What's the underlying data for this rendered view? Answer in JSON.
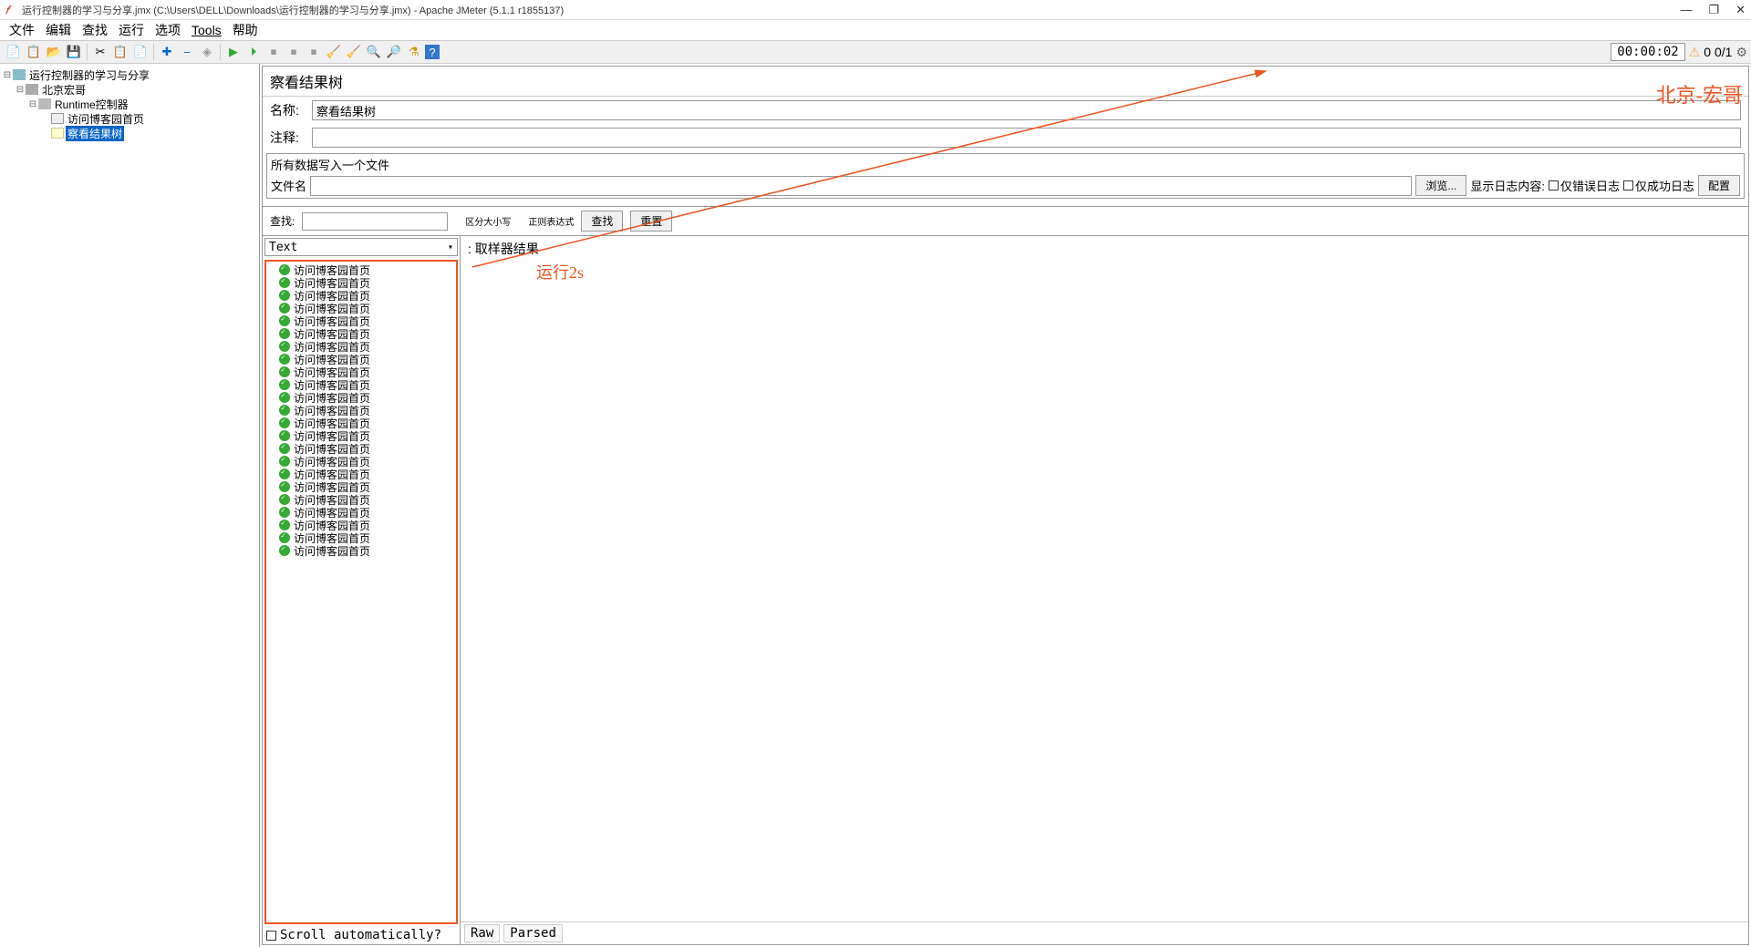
{
  "window": {
    "title": "运行控制器的学习与分享.jmx (C:\\Users\\DELL\\Downloads\\运行控制器的学习与分享.jmx) - Apache JMeter (5.1.1 r1855137)"
  },
  "menu": {
    "file": "文件",
    "edit": "编辑",
    "search": "查找",
    "run": "运行",
    "options": "选项",
    "tools": "Tools",
    "help": "帮助"
  },
  "status": {
    "timer": "00:00:02",
    "counter": "0 0/1"
  },
  "tree": {
    "root": "运行控制器的学习与分享",
    "group": "北京宏哥",
    "controller": "Runtime控制器",
    "sampler": "访问博客园首页",
    "listener": "察看结果树"
  },
  "panel": {
    "title": "察看结果树",
    "name_label": "名称:",
    "name_value": "察看结果树",
    "comment_label": "注释:",
    "file_section": "所有数据写入一个文件",
    "filename_label": "文件名",
    "browse": "浏览...",
    "show_log": "显示日志内容:",
    "only_error": "仅错误日志",
    "only_success": "仅成功日志",
    "configure": "配置",
    "search_label": "查找:",
    "case_sensitive": "区分大小写",
    "regex": "正则表达式",
    "search_btn": "查找",
    "reset_btn": "重置",
    "dropdown": "Text",
    "sampler_result": "取样器结果",
    "scroll_auto": "Scroll automatically?",
    "tab_raw": "Raw",
    "tab_parsed": "Parsed",
    "result_item": "访问博客园首页",
    "result_count": 23
  },
  "annotation": {
    "author": "北京-宏哥",
    "runtime": "运行2s"
  }
}
